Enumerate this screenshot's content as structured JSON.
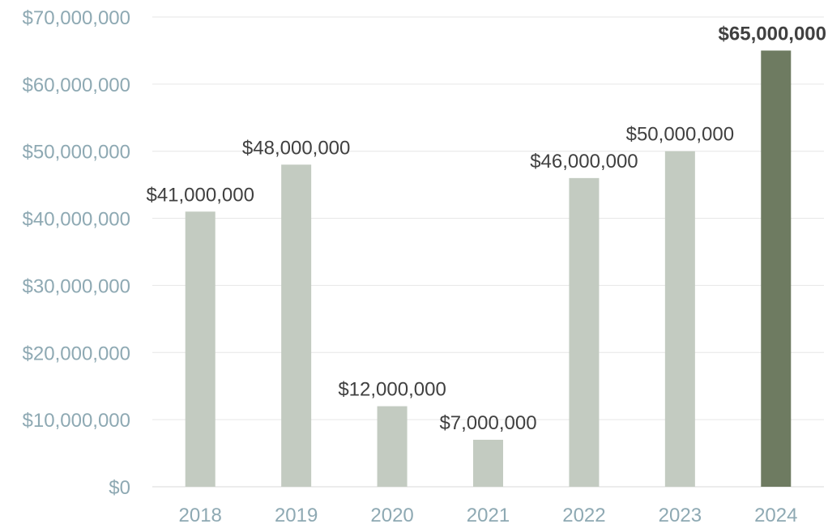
{
  "chart_data": {
    "type": "bar",
    "categories": [
      "2018",
      "2019",
      "2020",
      "2021",
      "2022",
      "2023",
      "2024"
    ],
    "values": [
      41000000,
      48000000,
      12000000,
      7000000,
      46000000,
      50000000,
      65000000
    ],
    "data_labels": [
      "$41,000,000",
      "$48,000,000",
      "$12,000,000",
      "$7,000,000",
      "$46,000,000",
      "$50,000,000",
      "$65,000,000"
    ],
    "highlight_index": 6,
    "ylim": [
      0,
      70000000
    ],
    "yticks": [
      0,
      10000000,
      20000000,
      30000000,
      40000000,
      50000000,
      60000000,
      70000000
    ],
    "ytick_labels": [
      "$0",
      "$10,000,000",
      "$20,000,000",
      "$30,000,000",
      "$40,000,000",
      "$50,000,000",
      "$60,000,000",
      "$70,000,000"
    ],
    "title": "",
    "xlabel": "",
    "ylabel": "",
    "grid": true,
    "legend": "none",
    "colors": {
      "bar": "#c3cbc1",
      "highlight_bar": "#6e7b61",
      "axis_text": "#8ea9b3",
      "grid": "#e6e6e6",
      "label_text": "#404040"
    }
  }
}
